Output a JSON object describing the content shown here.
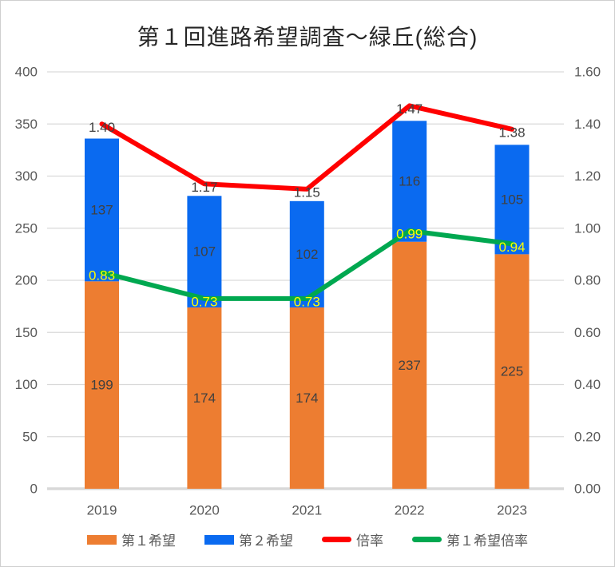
{
  "chart_data": {
    "type": "combo-stacked-bar-line",
    "title": "第１回進路希望調査～緑丘(総合)",
    "categories": [
      "2019",
      "2020",
      "2021",
      "2022",
      "2023"
    ],
    "series": [
      {
        "name": "第１希望",
        "type": "bar",
        "axis": "left",
        "color": "#ED7D31",
        "values": [
          199,
          174,
          174,
          237,
          225
        ],
        "labels": [
          "199",
          "174",
          "174",
          "237",
          "225"
        ],
        "label_color": "#404040"
      },
      {
        "name": "第２希望",
        "type": "bar",
        "axis": "left",
        "color": "#0A6AF0",
        "values": [
          137,
          107,
          102,
          116,
          105
        ],
        "labels": [
          "137",
          "107",
          "102",
          "116",
          "105"
        ],
        "label_color": "#404040"
      },
      {
        "name": "倍率",
        "type": "line",
        "axis": "right",
        "color": "#FF0000",
        "values": [
          1.4,
          1.17,
          1.15,
          1.47,
          1.38
        ],
        "labels": [
          "1.40",
          "1.17",
          "1.15",
          "1.47",
          "1.38"
        ],
        "label_color": "#404040"
      },
      {
        "name": "第１希望倍率",
        "type": "line",
        "axis": "right",
        "color": "#00A850",
        "values": [
          0.83,
          0.73,
          0.73,
          0.99,
          0.94
        ],
        "labels": [
          "0.83",
          "0.73",
          "0.73",
          "0.99",
          "0.94"
        ],
        "label_color": "#FFFF00"
      }
    ],
    "stacked": true,
    "grid": true,
    "legend_position": "bottom",
    "left_axis": {
      "min": 0,
      "max": 400,
      "step": 50,
      "tick_labels": [
        "0",
        "50",
        "100",
        "150",
        "200",
        "250",
        "300",
        "350",
        "400"
      ]
    },
    "right_axis": {
      "min": 0.0,
      "max": 1.6,
      "step": 0.2,
      "tick_labels": [
        "0.00",
        "0.20",
        "0.40",
        "0.60",
        "0.80",
        "1.00",
        "1.20",
        "1.40",
        "1.60"
      ]
    }
  },
  "colors": {
    "grid": "#D9D9D9",
    "axis_text": "#595959",
    "title_text": "#262626",
    "background": "#FFFFFF"
  }
}
